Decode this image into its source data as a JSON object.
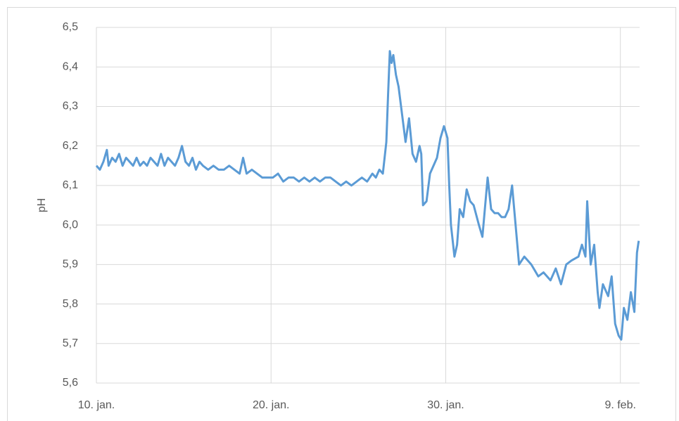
{
  "chart_data": {
    "type": "line",
    "y_label": "pH",
    "xlim": [
      0,
      31.1
    ],
    "xticks": [
      {
        "value": 0,
        "label": "10. jan."
      },
      {
        "value": 10,
        "label": "20. jan."
      },
      {
        "value": 20,
        "label": "30. jan."
      },
      {
        "value": 30,
        "label": "9. feb."
      }
    ],
    "ylim": [
      5.6,
      6.5
    ],
    "yticks": [
      {
        "value": 5.6,
        "label": "5,6"
      },
      {
        "value": 5.7,
        "label": "5,7"
      },
      {
        "value": 5.8,
        "label": "5,8"
      },
      {
        "value": 5.9,
        "label": "5,9"
      },
      {
        "value": 6.0,
        "label": "6,0"
      },
      {
        "value": 6.1,
        "label": "6,1"
      },
      {
        "value": 6.2,
        "label": "6,2"
      },
      {
        "value": 6.3,
        "label": "6,3"
      },
      {
        "value": 6.4,
        "label": "6,4"
      },
      {
        "value": 6.5,
        "label": "6,5"
      }
    ],
    "grid": true,
    "x": [
      0,
      0.2,
      0.4,
      0.6,
      0.7,
      0.9,
      1.1,
      1.3,
      1.5,
      1.7,
      1.9,
      2.1,
      2.3,
      2.5,
      2.7,
      2.9,
      3.1,
      3.3,
      3.5,
      3.7,
      3.9,
      4.1,
      4.3,
      4.5,
      4.7,
      4.9,
      5.1,
      5.3,
      5.5,
      5.7,
      5.9,
      6.1,
      6.4,
      6.7,
      7.0,
      7.3,
      7.6,
      7.9,
      8.2,
      8.4,
      8.6,
      8.9,
      9.2,
      9.5,
      9.8,
      10.1,
      10.4,
      10.7,
      11.0,
      11.3,
      11.6,
      11.9,
      12.2,
      12.5,
      12.8,
      13.1,
      13.4,
      13.7,
      14.0,
      14.3,
      14.6,
      14.9,
      15.2,
      15.5,
      15.8,
      16.0,
      16.2,
      16.4,
      16.6,
      16.7,
      16.8,
      16.9,
      17.0,
      17.15,
      17.3,
      17.5,
      17.7,
      17.9,
      18.1,
      18.3,
      18.5,
      18.6,
      18.7,
      18.9,
      19.1,
      19.3,
      19.5,
      19.7,
      19.9,
      20.1,
      20.2,
      20.3,
      20.4,
      20.5,
      20.65,
      20.8,
      21.0,
      21.2,
      21.4,
      21.6,
      21.9,
      22.1,
      22.4,
      22.6,
      22.8,
      23.0,
      23.2,
      23.4,
      23.6,
      23.8,
      24.0,
      24.2,
      24.5,
      24.9,
      25.3,
      25.6,
      26.0,
      26.3,
      26.6,
      26.9,
      27.2,
      27.6,
      27.8,
      28.0,
      28.1,
      28.3,
      28.5,
      28.7,
      28.8,
      29.0,
      29.3,
      29.5,
      29.7,
      29.9,
      30.05,
      30.2,
      30.4,
      30.6,
      30.8,
      30.95,
      31.05
    ],
    "series": [
      {
        "name": "pH",
        "color": "#5b9bd5",
        "values": [
          6.15,
          6.14,
          6.16,
          6.19,
          6.15,
          6.17,
          6.16,
          6.18,
          6.15,
          6.17,
          6.16,
          6.15,
          6.17,
          6.15,
          6.16,
          6.15,
          6.17,
          6.16,
          6.15,
          6.18,
          6.15,
          6.17,
          6.16,
          6.15,
          6.17,
          6.2,
          6.16,
          6.15,
          6.17,
          6.14,
          6.16,
          6.15,
          6.14,
          6.15,
          6.14,
          6.14,
          6.15,
          6.14,
          6.13,
          6.17,
          6.13,
          6.14,
          6.13,
          6.12,
          6.12,
          6.12,
          6.13,
          6.11,
          6.12,
          6.12,
          6.11,
          6.12,
          6.11,
          6.12,
          6.11,
          6.12,
          6.12,
          6.11,
          6.1,
          6.11,
          6.1,
          6.11,
          6.12,
          6.11,
          6.13,
          6.12,
          6.14,
          6.13,
          6.21,
          6.33,
          6.44,
          6.41,
          6.43,
          6.38,
          6.35,
          6.28,
          6.21,
          6.27,
          6.18,
          6.16,
          6.2,
          6.18,
          6.05,
          6.06,
          6.13,
          6.15,
          6.17,
          6.22,
          6.25,
          6.22,
          6.1,
          6.0,
          5.96,
          5.92,
          5.95,
          6.04,
          6.02,
          6.09,
          6.06,
          6.05,
          6.0,
          5.97,
          6.12,
          6.04,
          6.03,
          6.03,
          6.02,
          6.02,
          6.04,
          6.1,
          6.0,
          5.9,
          5.92,
          5.9,
          5.87,
          5.88,
          5.86,
          5.89,
          5.85,
          5.9,
          5.91,
          5.92,
          5.95,
          5.92,
          6.06,
          5.9,
          5.95,
          5.83,
          5.79,
          5.85,
          5.82,
          5.87,
          5.75,
          5.72,
          5.71,
          5.79,
          5.76,
          5.83,
          5.78,
          5.93,
          5.96
        ]
      }
    ]
  }
}
